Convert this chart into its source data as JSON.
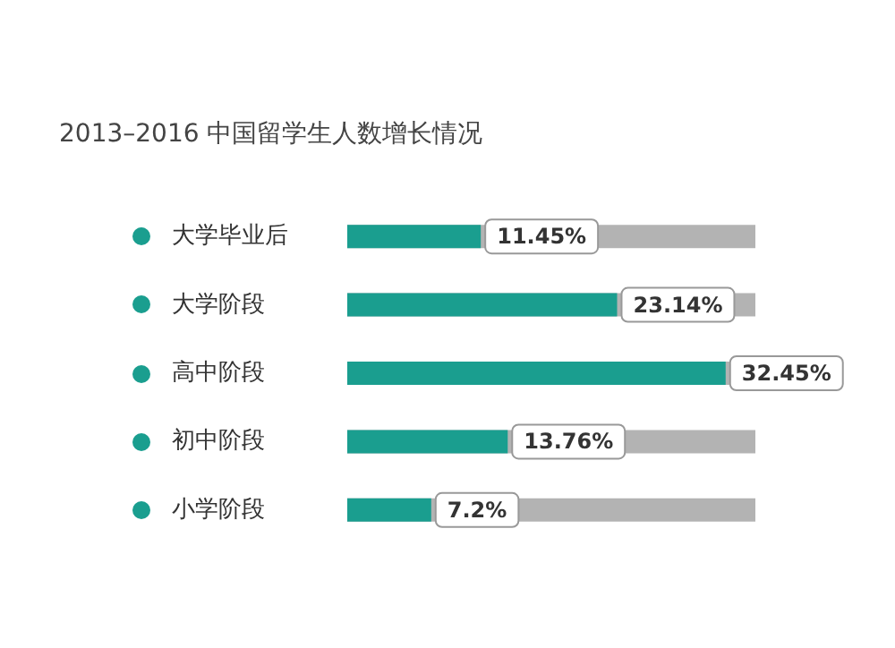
{
  "chart_data": {
    "type": "bar",
    "orientation": "horizontal",
    "title": "2013–2016 中国留学生人数增长情况",
    "categories": [
      "大学毕业后",
      "大学阶段",
      "高中阶段",
      "初中阶段",
      "小学阶段"
    ],
    "values": [
      11.45,
      23.14,
      32.45,
      13.76,
      7.2
    ],
    "value_labels": [
      "11.45%",
      "23.14%",
      "32.45%",
      "13.76%",
      "7.2%"
    ],
    "color": "#1a9e8f",
    "tick_labels": "y"
  }
}
